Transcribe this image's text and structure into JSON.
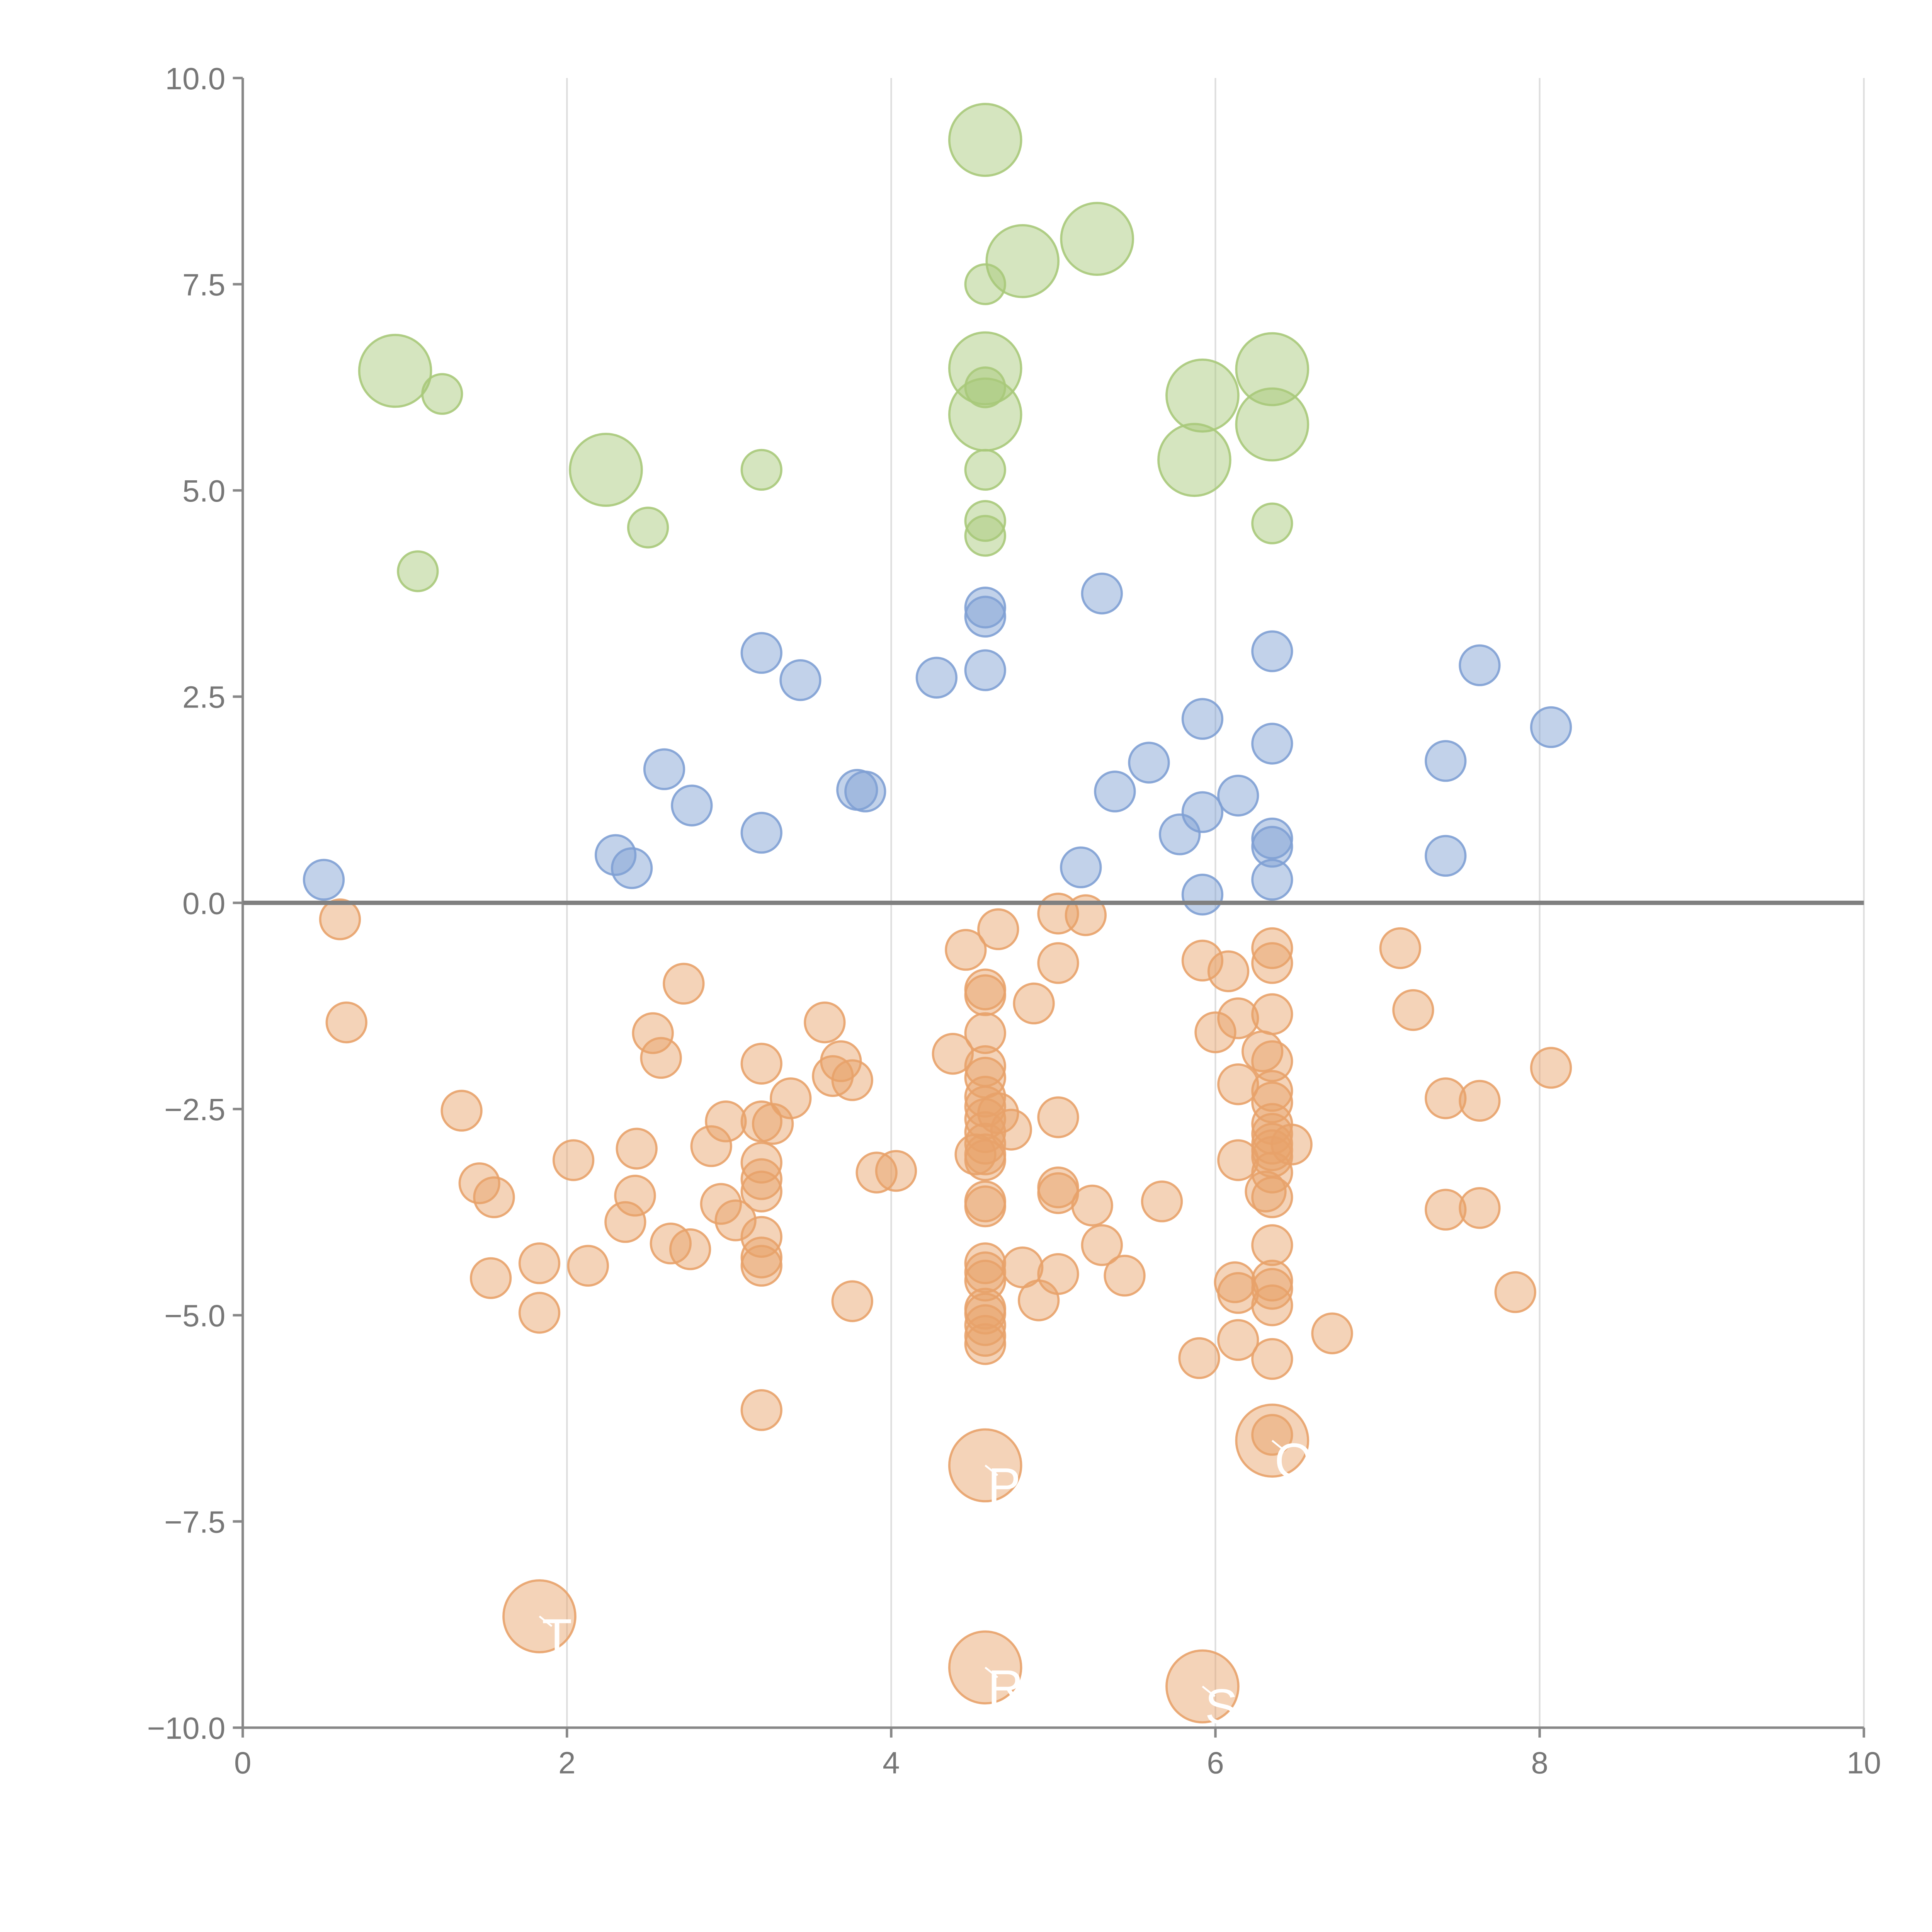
{
  "chart_data": {
    "type": "scatter",
    "title": "",
    "xlabel": "",
    "ylabel": "",
    "xlim": [
      0,
      10
    ],
    "ylim": [
      -10,
      10
    ],
    "x_ticks": [
      "0",
      "2",
      "4",
      "6",
      "8",
      "10"
    ],
    "y_ticks": [
      "10.0",
      "7.5",
      "5.0",
      "2.5",
      "0.0",
      "−2.5",
      "−5.0",
      "−7.5",
      "−10.0"
    ],
    "y_tick_values": [
      10,
      7.5,
      5,
      2.5,
      0,
      -2.5,
      -5,
      -7.5,
      -10
    ],
    "x_tick_values": [
      0,
      2,
      4,
      6,
      8,
      10
    ],
    "grid": "vertical lines at x ticks",
    "reference_line": {
      "y": 0
    },
    "colors": {
      "green": "#a8c97a",
      "blue": "#7fa0d4",
      "orange": "#e8a26a"
    },
    "point_labels": [
      "P",
      "Q",
      "R",
      "S",
      "T"
    ],
    "series": [
      {
        "color": "green",
        "points": [
          [
            4.58,
            9.25,
            3
          ],
          [
            5.27,
            8.05,
            3
          ],
          [
            4.81,
            7.78,
            3
          ],
          [
            4.58,
            7.5,
            1
          ],
          [
            0.94,
            6.45,
            3
          ],
          [
            1.23,
            6.17,
            1
          ],
          [
            4.58,
            6.48,
            3
          ],
          [
            4.58,
            6.25,
            1
          ],
          [
            4.58,
            5.92,
            3
          ],
          [
            4.58,
            5.25,
            1
          ],
          [
            5.92,
            6.15,
            3
          ],
          [
            6.35,
            6.47,
            3
          ],
          [
            6.35,
            5.8,
            3
          ],
          [
            5.87,
            5.37,
            3
          ],
          [
            2.24,
            5.25,
            3
          ],
          [
            3.2,
            5.25,
            1
          ],
          [
            2.5,
            4.55,
            1
          ],
          [
            1.08,
            4.02,
            1
          ],
          [
            4.58,
            4.63,
            1
          ],
          [
            4.58,
            4.45,
            1
          ],
          [
            6.35,
            4.6,
            1
          ]
        ]
      },
      {
        "color": "blue",
        "points": [
          [
            0.5,
            0.28
          ],
          [
            2.3,
            0.58
          ],
          [
            2.4,
            0.42
          ],
          [
            2.6,
            1.62
          ],
          [
            2.77,
            1.18
          ],
          [
            3.2,
            3.03
          ],
          [
            3.44,
            2.7
          ],
          [
            3.2,
            0.85
          ],
          [
            3.79,
            1.37
          ],
          [
            3.84,
            1.35
          ],
          [
            4.28,
            2.73
          ],
          [
            4.58,
            3.58
          ],
          [
            4.58,
            3.47
          ],
          [
            4.58,
            2.82
          ],
          [
            5.3,
            3.75
          ],
          [
            5.17,
            0.43
          ],
          [
            5.38,
            1.35
          ],
          [
            5.59,
            1.7
          ],
          [
            5.78,
            0.83
          ],
          [
            5.92,
            2.23
          ],
          [
            5.92,
            1.1
          ],
          [
            5.92,
            0.1
          ],
          [
            6.14,
            1.3
          ],
          [
            6.35,
            3.05
          ],
          [
            6.35,
            1.93
          ],
          [
            6.35,
            0.78
          ],
          [
            6.35,
            0.68
          ],
          [
            6.35,
            0.28
          ],
          [
            7.42,
            1.72
          ],
          [
            7.42,
            0.57
          ],
          [
            7.63,
            2.88
          ],
          [
            8.07,
            2.13
          ]
        ]
      },
      {
        "color": "orange",
        "points": [
          [
            0.6,
            -0.2,
            1
          ],
          [
            0.64,
            -1.45,
            1
          ],
          [
            1.35,
            -2.52,
            1
          ],
          [
            1.46,
            -3.4,
            1
          ],
          [
            1.55,
            -3.57,
            1
          ],
          [
            1.53,
            -4.55,
            1
          ],
          [
            1.83,
            -4.37,
            1
          ],
          [
            1.83,
            -4.97,
            1
          ],
          [
            2.04,
            -3.12,
            1
          ],
          [
            2.13,
            -4.4,
            1
          ],
          [
            2.36,
            -3.87,
            1
          ],
          [
            2.42,
            -3.55,
            1
          ],
          [
            2.43,
            -2.98,
            1
          ],
          [
            2.53,
            -1.58,
            1
          ],
          [
            2.58,
            -1.88,
            1
          ],
          [
            2.64,
            -4.13,
            1
          ],
          [
            2.72,
            -0.98,
            1
          ],
          [
            2.76,
            -4.2,
            1
          ],
          [
            2.89,
            -2.95,
            1
          ],
          [
            2.95,
            -3.65,
            1
          ],
          [
            2.98,
            -2.65,
            1
          ],
          [
            3.04,
            -3.85,
            1
          ],
          [
            3.2,
            -1.95,
            1
          ],
          [
            3.2,
            -2.65,
            1
          ],
          [
            3.2,
            -3.15,
            1
          ],
          [
            3.2,
            -3.35,
            1
          ],
          [
            3.2,
            -3.5,
            1
          ],
          [
            3.2,
            -4.05,
            1
          ],
          [
            3.2,
            -4.3,
            1
          ],
          [
            3.2,
            -4.4,
            1
          ],
          [
            3.2,
            -6.15,
            1
          ],
          [
            3.27,
            -2.68,
            1
          ],
          [
            3.38,
            -2.37,
            1
          ],
          [
            3.59,
            -1.45,
            1
          ],
          [
            3.64,
            -2.1,
            1
          ],
          [
            3.69,
            -1.92,
            1
          ],
          [
            3.76,
            -2.15,
            1
          ],
          [
            3.76,
            -4.83,
            1
          ],
          [
            3.91,
            -3.27,
            1
          ],
          [
            4.03,
            -3.25,
            1
          ],
          [
            4.38,
            -1.83,
            1
          ],
          [
            4.46,
            -0.57,
            1
          ],
          [
            4.52,
            -3.05,
            1
          ],
          [
            4.58,
            -1.05,
            1
          ],
          [
            4.58,
            -1.12,
            1
          ],
          [
            4.58,
            -1.58,
            1
          ],
          [
            4.58,
            -1.98,
            1
          ],
          [
            4.58,
            -2.12,
            1
          ],
          [
            4.58,
            -2.35,
            1
          ],
          [
            4.58,
            -2.47,
            1
          ],
          [
            4.58,
            -2.62,
            1
          ],
          [
            4.58,
            -2.78,
            1
          ],
          [
            4.58,
            -2.92,
            1
          ],
          [
            4.58,
            -3.05,
            1
          ],
          [
            4.58,
            -3.12,
            1
          ],
          [
            4.58,
            -3.62,
            1
          ],
          [
            4.58,
            -3.68,
            1
          ],
          [
            4.58,
            -4.37,
            1
          ],
          [
            4.58,
            -4.48,
            1
          ],
          [
            4.58,
            -4.58,
            1
          ],
          [
            4.58,
            -4.92,
            1
          ],
          [
            4.58,
            -4.98,
            1
          ],
          [
            4.58,
            -5.12,
            1
          ],
          [
            4.58,
            -5.25,
            1
          ],
          [
            4.58,
            -5.35,
            1
          ],
          [
            4.66,
            -0.32,
            1
          ],
          [
            4.66,
            -2.55,
            1
          ],
          [
            4.74,
            -2.75,
            1
          ],
          [
            4.81,
            -4.42,
            1
          ],
          [
            4.88,
            -1.22,
            1
          ],
          [
            4.91,
            -4.82,
            1
          ],
          [
            5.03,
            -0.13,
            1
          ],
          [
            5.03,
            -0.73,
            1
          ],
          [
            5.03,
            -2.6,
            1
          ],
          [
            5.03,
            -3.45,
            1
          ],
          [
            5.03,
            -3.52,
            1
          ],
          [
            5.03,
            -4.5,
            1
          ],
          [
            5.2,
            -0.15,
            1
          ],
          [
            5.24,
            -3.67,
            1
          ],
          [
            5.3,
            -4.15,
            1
          ],
          [
            5.44,
            -4.52,
            1
          ],
          [
            5.67,
            -3.62,
            1
          ],
          [
            5.92,
            -0.7,
            1
          ],
          [
            5.9,
            -5.52,
            1
          ],
          [
            6.0,
            -1.57,
            1
          ],
          [
            6.08,
            -0.83,
            1
          ],
          [
            6.14,
            -1.4,
            1
          ],
          [
            6.14,
            -2.2,
            1
          ],
          [
            6.14,
            -3.12,
            1
          ],
          [
            6.12,
            -4.6,
            1
          ],
          [
            6.14,
            -4.73,
            1
          ],
          [
            6.14,
            -5.3,
            1
          ],
          [
            6.35,
            -0.55,
            1
          ],
          [
            6.35,
            -0.73,
            1
          ],
          [
            6.35,
            -1.35,
            1
          ],
          [
            6.29,
            -1.8,
            1
          ],
          [
            6.35,
            -1.92,
            1
          ],
          [
            6.35,
            -2.28,
            1
          ],
          [
            6.35,
            -2.42,
            1
          ],
          [
            6.35,
            -2.68,
            1
          ],
          [
            6.35,
            -2.8,
            1
          ],
          [
            6.35,
            -2.92,
            1
          ],
          [
            6.35,
            -3.0,
            1
          ],
          [
            6.35,
            -3.08,
            1
          ],
          [
            6.35,
            -3.27,
            1
          ],
          [
            6.31,
            -3.5,
            1
          ],
          [
            6.35,
            -3.57,
            1
          ],
          [
            6.35,
            -4.15,
            1
          ],
          [
            6.35,
            -4.58,
            1
          ],
          [
            6.35,
            -4.68,
            1
          ],
          [
            6.35,
            -4.88,
            1
          ],
          [
            6.35,
            -5.53,
            1
          ],
          [
            6.35,
            -6.45,
            1
          ],
          [
            6.47,
            -2.93,
            1
          ],
          [
            6.72,
            -5.22,
            1
          ],
          [
            7.14,
            -0.55,
            1
          ],
          [
            7.22,
            -1.3,
            1
          ],
          [
            7.42,
            -2.37,
            1
          ],
          [
            7.42,
            -3.72,
            1
          ],
          [
            7.63,
            -2.4,
            1
          ],
          [
            7.63,
            -3.7,
            1
          ],
          [
            7.85,
            -4.72,
            1
          ],
          [
            8.07,
            -2.0,
            1
          ],
          [
            4.58,
            -6.82,
            3,
            "P"
          ],
          [
            6.35,
            -6.52,
            3,
            "Q"
          ],
          [
            4.58,
            -9.27,
            3,
            "R"
          ],
          [
            5.92,
            -9.5,
            3,
            "S"
          ],
          [
            1.83,
            -8.65,
            3,
            "T"
          ]
        ]
      }
    ]
  }
}
